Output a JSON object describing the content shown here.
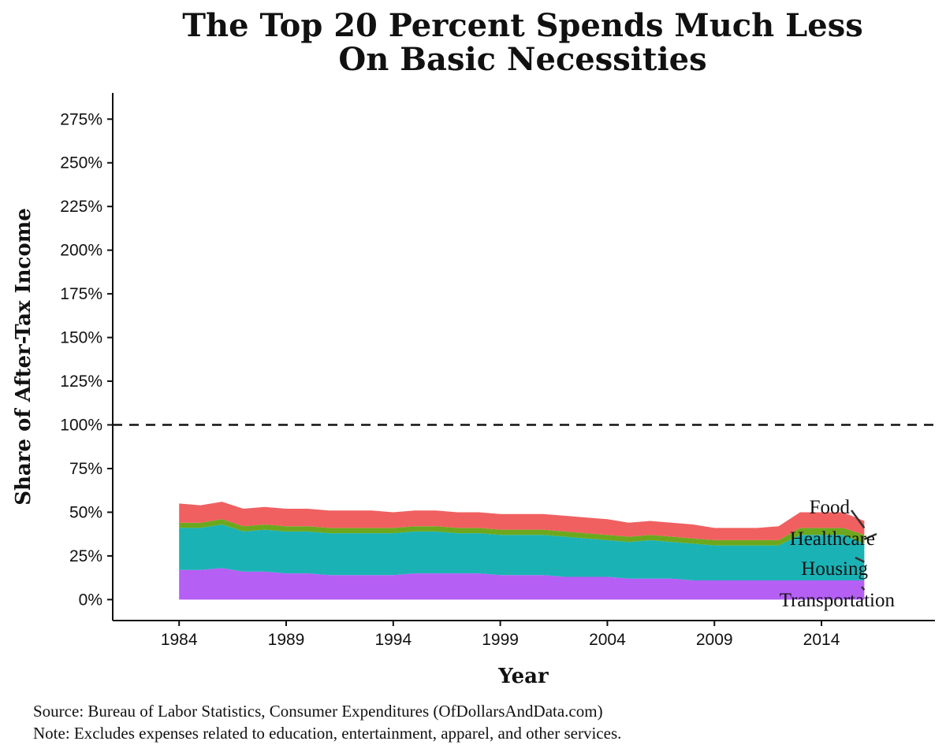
{
  "chart_data": {
    "type": "area",
    "title_lines": [
      "The Top 20 Percent Spends Much Less",
      "On Basic Necessities"
    ],
    "xlabel": "Year",
    "ylabel": "Share of After-Tax Income",
    "xlim": [
      1980.9,
      2019.3
    ],
    "ylim": [
      -12,
      290
    ],
    "x_ticks": [
      1984,
      1989,
      1994,
      1999,
      2004,
      2009,
      2014
    ],
    "y_ticks": [
      0,
      25,
      50,
      75,
      100,
      125,
      150,
      175,
      200,
      225,
      250,
      275
    ],
    "y_tick_format": "{v}%",
    "reference_line": {
      "y": 100,
      "style": "dashed"
    },
    "stack_order": [
      "Transportation",
      "Housing",
      "Healthcare",
      "Food"
    ],
    "years": [
      1984,
      1985,
      1986,
      1987,
      1988,
      1989,
      1990,
      1991,
      1992,
      1993,
      1994,
      1995,
      1996,
      1997,
      1998,
      1999,
      2000,
      2001,
      2002,
      2003,
      2004,
      2005,
      2006,
      2007,
      2008,
      2009,
      2010,
      2011,
      2012,
      2013,
      2014,
      2015,
      2016
    ],
    "series": [
      {
        "name": "Transportation",
        "color": "#b55ff5",
        "values": [
          17,
          17,
          18,
          16,
          16,
          15,
          15,
          14,
          14,
          14,
          14,
          15,
          15,
          15,
          15,
          14,
          14,
          14,
          13,
          13,
          13,
          12,
          12,
          12,
          11,
          11,
          11,
          11,
          11,
          11,
          11,
          11,
          11
        ]
      },
      {
        "name": "Housing",
        "color": "#1bb2b5",
        "values": [
          24,
          24,
          25,
          23,
          24,
          24,
          24,
          24,
          24,
          24,
          24,
          24,
          24,
          23,
          23,
          23,
          23,
          23,
          23,
          22,
          21,
          21,
          22,
          21,
          21,
          20,
          20,
          20,
          20,
          26,
          26,
          26,
          21
        ]
      },
      {
        "name": "Healthcare",
        "color": "#6ca81e",
        "values": [
          3,
          3,
          3,
          3,
          3,
          3,
          3,
          3,
          3,
          3,
          3,
          3,
          3,
          3,
          3,
          3,
          3,
          3,
          3,
          3,
          3,
          3,
          3,
          3,
          3,
          3,
          3,
          3,
          3,
          4,
          4,
          4,
          5
        ]
      },
      {
        "name": "Food",
        "color": "#f06060",
        "values": [
          11,
          10,
          10,
          10,
          10,
          10,
          10,
          10,
          10,
          10,
          9,
          9,
          9,
          9,
          9,
          9,
          9,
          9,
          9,
          9,
          9,
          8,
          8,
          8,
          8,
          7,
          7,
          7,
          8,
          9,
          9,
          9,
          8
        ]
      }
    ],
    "direct_labels": [
      {
        "series": "Food",
        "text": "Food"
      },
      {
        "series": "Healthcare",
        "text": "Healthcare"
      },
      {
        "series": "Housing",
        "text": "Housing"
      },
      {
        "series": "Transportation",
        "text": "Transportation"
      }
    ]
  },
  "source_note": "Source:  Bureau of Labor Statistics, Consumer Expenditures (OfDollarsAndData.com)",
  "footnote": "Note:  Excludes expenses related to education, entertainment, apparel, and other services."
}
